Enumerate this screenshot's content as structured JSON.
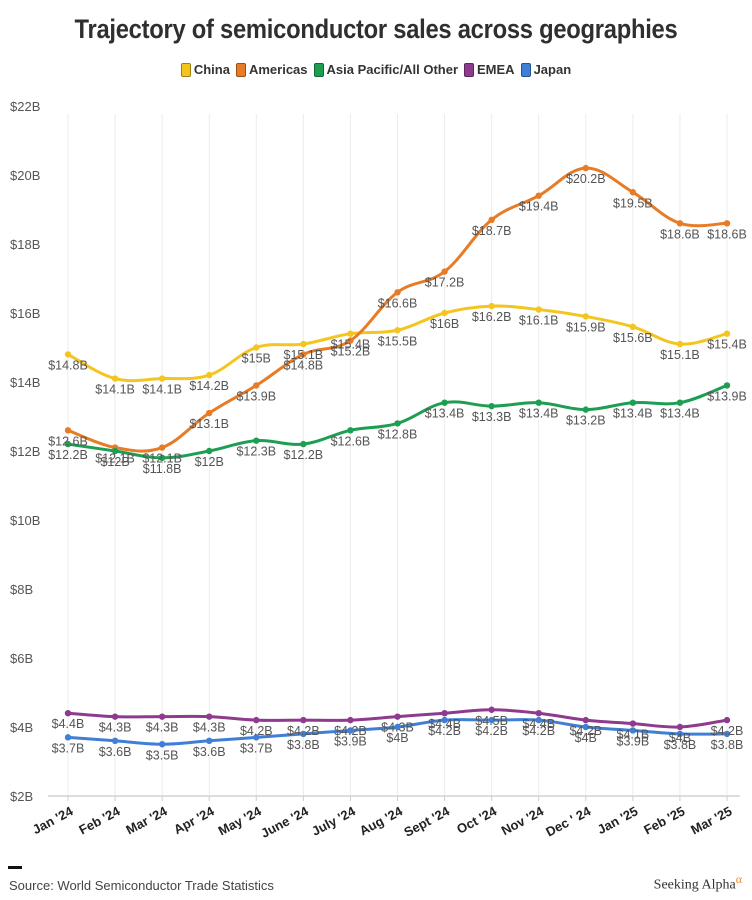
{
  "chart_data": {
    "type": "line",
    "title": "Trajectory of semiconductor sales across geographies",
    "xlabel": "",
    "ylabel": "",
    "ylim": [
      2,
      22
    ],
    "yticks": [
      "$2B",
      "$4B",
      "$6B",
      "$8B",
      "$10B",
      "$12B",
      "$14B",
      "$16B",
      "$18B",
      "$20B",
      "$22B"
    ],
    "ytick_values": [
      2,
      4,
      6,
      8,
      10,
      12,
      14,
      16,
      18,
      20,
      22
    ],
    "grid": "vertical",
    "legend_position": "top-center",
    "categories": [
      "Jan '24",
      "Feb '24",
      "Mar '24",
      "Apr '24",
      "May '24",
      "June '24",
      "July '24",
      "Aug '24",
      "Sept '24",
      "Oct '24",
      "Nov '24",
      "Dec ' 24",
      "Jan '25",
      "Feb '25",
      "Mar '25"
    ],
    "series": [
      {
        "name": "China",
        "color": "#f4c51f",
        "values": [
          14.8,
          14.1,
          14.1,
          14.2,
          15.0,
          15.1,
          15.4,
          15.5,
          16.0,
          16.2,
          16.1,
          15.9,
          15.6,
          15.1,
          15.4
        ],
        "labels": [
          "$14.8B",
          "$14.1B",
          "$14.1B",
          "$14.2B",
          "$15B",
          "$15.1B",
          "$15.4B",
          "$15.5B",
          "$16B",
          "$16.2B",
          "$16.1B",
          "$15.9B",
          "$15.6B",
          "$15.1B",
          "$15.4B"
        ]
      },
      {
        "name": "Americas",
        "color": "#e87b25",
        "values": [
          12.6,
          12.1,
          12.1,
          13.1,
          13.9,
          14.8,
          15.2,
          16.6,
          17.2,
          18.7,
          19.4,
          20.2,
          19.5,
          18.6,
          18.6
        ],
        "labels": [
          "$12.6B",
          "$12.1B",
          "$12.1B",
          "$13.1B",
          "$13.9B",
          "$14.8B",
          "$15.2B",
          "$16.6B",
          "$17.2B",
          "$18.7B",
          "$19.4B",
          "$20.2B",
          "$19.5B",
          "$18.6B",
          "$18.6B"
        ]
      },
      {
        "name": "Asia Pacific/All Other",
        "color": "#1e9e52",
        "values": [
          12.2,
          12.0,
          11.8,
          12.0,
          12.3,
          12.2,
          12.6,
          12.8,
          13.4,
          13.3,
          13.4,
          13.2,
          13.4,
          13.4,
          13.9
        ],
        "labels": [
          "$12.2B",
          "$12B",
          "$11.8B",
          "$12B",
          "$12.3B",
          "$12.2B",
          "$12.6B",
          "$12.8B",
          "$13.4B",
          "$13.3B",
          "$13.4B",
          "$13.2B",
          "$13.4B",
          "$13.4B",
          "$13.9B"
        ]
      },
      {
        "name": "EMEA",
        "color": "#8e3a8f",
        "values": [
          4.4,
          4.3,
          4.3,
          4.3,
          4.2,
          4.2,
          4.2,
          4.3,
          4.4,
          4.5,
          4.4,
          4.2,
          4.1,
          4.0,
          4.2
        ],
        "labels": [
          "$4.4B",
          "$4.3B",
          "$4.3B",
          "$4.3B",
          "$4.2B",
          "$4.2B",
          "$4.2B",
          "$4.3B",
          "$4.4B",
          "$4.5B",
          "$4.4B",
          "$4.2B",
          "$4.1B",
          "$4B",
          "$4.2B"
        ]
      },
      {
        "name": "Japan",
        "color": "#3f7fd6",
        "values": [
          3.7,
          3.6,
          3.5,
          3.6,
          3.7,
          3.8,
          3.9,
          4.0,
          4.2,
          4.2,
          4.2,
          4.0,
          3.9,
          3.8,
          3.8
        ],
        "labels": [
          "$3.7B",
          "$3.6B",
          "$3.5B",
          "$3.6B",
          "$3.7B",
          "$3.8B",
          "$3.9B",
          "$4B",
          "$4.2B",
          "$4.2B",
          "$4.2B",
          "$4B",
          "$3.9B",
          "$3.8B",
          "$3.8B"
        ]
      }
    ]
  },
  "footer": {
    "source": "Source: World Semiconductor Trade Statistics",
    "brand": "Seeking Alpha",
    "brand_mark": "α"
  }
}
